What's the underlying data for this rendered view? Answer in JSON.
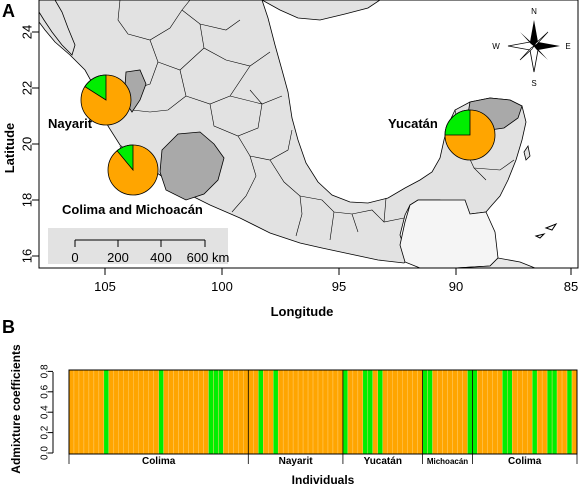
{
  "panel_a": {
    "label": "A",
    "x_axis_title": "Longitude",
    "y_axis_title": "Latitude",
    "x_ticks": [
      "105",
      "100",
      "95",
      "90",
      "85"
    ],
    "y_ticks": [
      "24",
      "22",
      "20",
      "18",
      "16"
    ],
    "scale_bar": {
      "ticks": [
        "0",
        "200",
        "400",
        "600 km"
      ]
    },
    "compass": {
      "n": "N",
      "s": "S",
      "e": "E",
      "w": "W"
    },
    "sites": [
      {
        "name": "Nayarit",
        "green_fraction": 0.16
      },
      {
        "name": "Colima and Michoacán",
        "green_fraction": 0.11
      },
      {
        "name": "Yucatán",
        "green_fraction": 0.25
      }
    ],
    "colors": {
      "major": "#FFA500",
      "minor": "#00EE00",
      "state_highlight": "#a9a9a9",
      "land": "#e2e2e2",
      "other_land": "#f5f5f5"
    }
  },
  "panel_b": {
    "label": "B",
    "y_axis_title": "Admixture coefficients",
    "x_axis_title": "Individuals",
    "y_ticks": [
      "0.0",
      "0.2",
      "0.4",
      "0.6",
      "0.8"
    ],
    "groups": [
      {
        "name": "Colima",
        "individuals": 36
      },
      {
        "name": "Nayarit",
        "individuals": 19
      },
      {
        "name": "Yucatán",
        "individuals": 16
      },
      {
        "name": "Michoacán",
        "individuals": 10
      },
      {
        "name": "Colima",
        "individuals": 21
      }
    ],
    "green_individuals": [
      7,
      18,
      28,
      29,
      30,
      38,
      41,
      55,
      59,
      60,
      62,
      71,
      72,
      80,
      81,
      87,
      88,
      93,
      96,
      97,
      100
    ]
  }
}
